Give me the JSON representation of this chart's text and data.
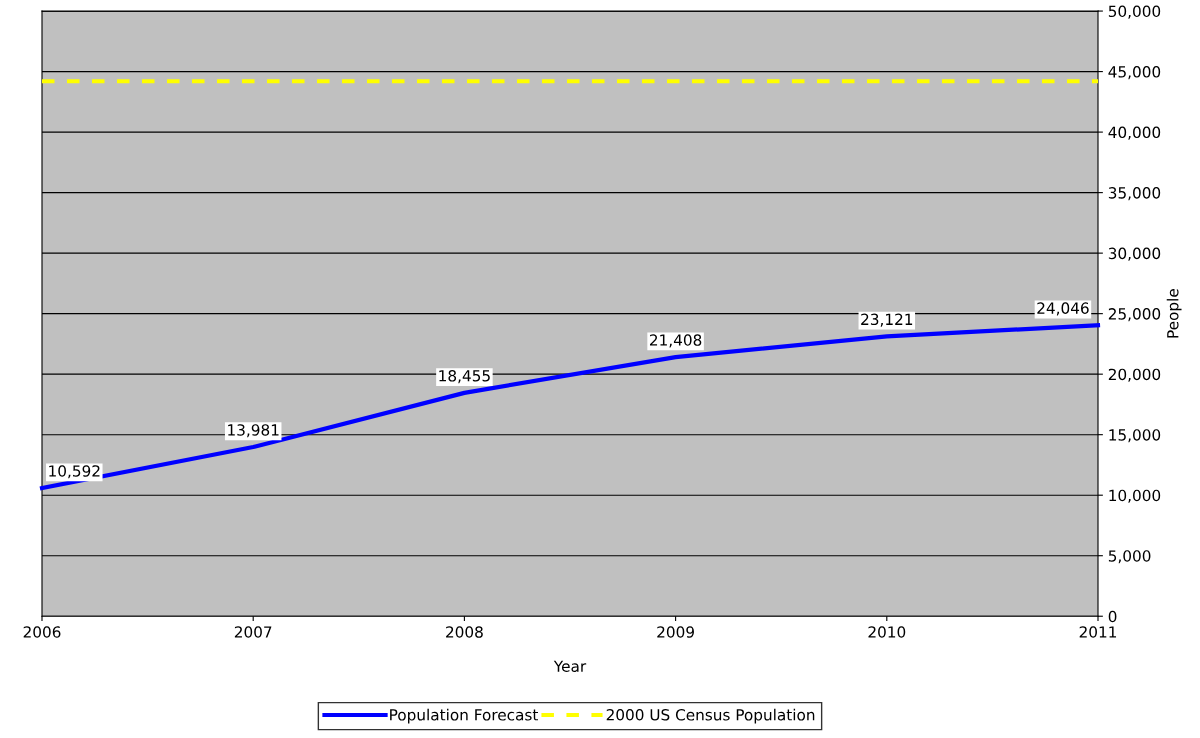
{
  "chart_data": {
    "type": "line",
    "xlabel": "Year",
    "ylabel": "People",
    "x": [
      2006,
      2007,
      2008,
      2009,
      2010,
      2011
    ],
    "series": [
      {
        "name": "Population Forecast",
        "color": "#0000ff",
        "values": [
          10592,
          13981,
          18455,
          21408,
          23121,
          24046
        ],
        "value_labels": [
          "10,592",
          "13,981",
          "18,455",
          "21,408",
          "23,121",
          "24,046"
        ],
        "line_style": "solid"
      },
      {
        "name": "2000 US Census Population",
        "color": "#ffff00",
        "x": [
          2006,
          2011
        ],
        "values": [
          44200,
          44200
        ],
        "line_style": "dashed"
      }
    ],
    "xlim": [
      2006,
      2011
    ],
    "xticks": [
      2006,
      2007,
      2008,
      2009,
      2010,
      2011
    ],
    "ylim": [
      0,
      50000
    ],
    "yticks": [
      {
        "value": 0,
        "label": "0"
      },
      {
        "value": 5000,
        "label": "5,000"
      },
      {
        "value": 10000,
        "label": "10,000"
      },
      {
        "value": 15000,
        "label": "15,000"
      },
      {
        "value": 20000,
        "label": "20,000"
      },
      {
        "value": 25000,
        "label": "25,000"
      },
      {
        "value": 30000,
        "label": "30,000"
      },
      {
        "value": 35000,
        "label": "35,000"
      },
      {
        "value": 40000,
        "label": "40,000"
      },
      {
        "value": 45000,
        "label": "45,000"
      },
      {
        "value": 50000,
        "label": "50,000"
      }
    ],
    "grid": "y",
    "legend": "bottom",
    "marker": "none"
  }
}
